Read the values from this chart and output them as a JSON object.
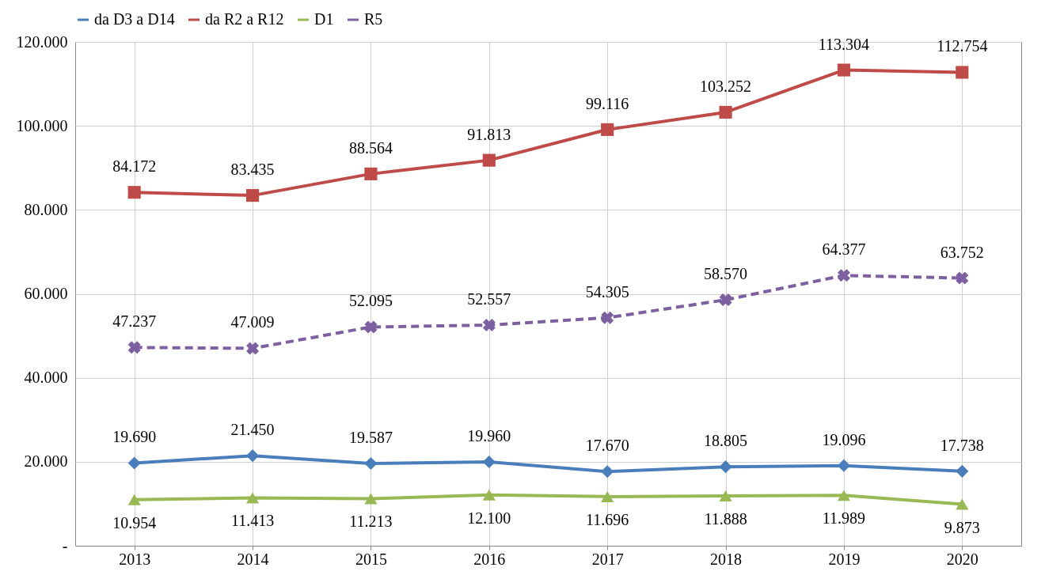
{
  "chart_data": {
    "type": "line",
    "categories": [
      "2013",
      "2014",
      "2015",
      "2016",
      "2017",
      "2018",
      "2019",
      "2020"
    ],
    "series": [
      {
        "name": "da D3 a D14",
        "color": "#4a7ebb",
        "marker": "diamond",
        "line_style": "solid",
        "values": [
          19690,
          21450,
          19587,
          19960,
          17670,
          18805,
          19096,
          17738
        ],
        "value_labels": [
          "19.690",
          "21.450",
          "19.587",
          "19.960",
          "17.670",
          "18.805",
          "19.096",
          "17.738"
        ]
      },
      {
        "name": "da R2 a R12",
        "color": "#be4b48",
        "marker": "square",
        "line_style": "solid",
        "values": [
          84172,
          83435,
          88564,
          91813,
          99116,
          103252,
          113304,
          112754
        ],
        "value_labels": [
          "84.172",
          "83.435",
          "88.564",
          "91.813",
          "99.116",
          "103.252",
          "113.304",
          "112.754"
        ]
      },
      {
        "name": "D1",
        "color": "#98b954",
        "marker": "triangle",
        "line_style": "solid",
        "values": [
          10954,
          11413,
          11213,
          12100,
          11696,
          11888,
          11989,
          9873
        ],
        "value_labels": [
          "10.954",
          "11.413",
          "11.213",
          "12.100",
          "11.696",
          "11.888",
          "11.989",
          "9.873"
        ]
      },
      {
        "name": "R5",
        "color": "#7d60a0",
        "marker": "cross",
        "line_style": "dashed",
        "values": [
          47237,
          47009,
          52095,
          52557,
          54305,
          58570,
          64377,
          63752
        ],
        "value_labels": [
          "47.237",
          "47.009",
          "52.095",
          "52.557",
          "54.305",
          "58.570",
          "64.377",
          "63.752"
        ]
      }
    ],
    "ylim": [
      0,
      120000
    ],
    "yticks": [
      {
        "value": 0,
        "label": "-"
      },
      {
        "value": 20000,
        "label": "20.000"
      },
      {
        "value": 40000,
        "label": "40.000"
      },
      {
        "value": 60000,
        "label": "60.000"
      },
      {
        "value": 80000,
        "label": "80.000"
      },
      {
        "value": 100000,
        "label": "100.000"
      },
      {
        "value": 120000,
        "label": "120.000"
      }
    ],
    "grid": true,
    "legend": "top"
  }
}
